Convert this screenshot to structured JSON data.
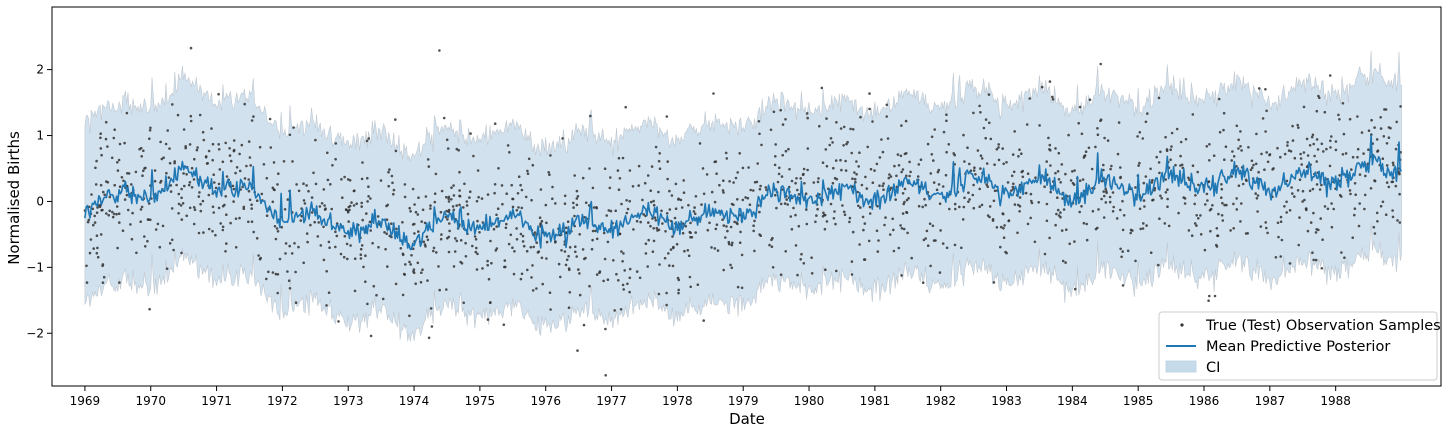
{
  "chart_data": {
    "type": "line",
    "title": "",
    "xlabel": "Date",
    "ylabel": "Normalised Births",
    "xlim": [
      1968.5,
      1989.6
    ],
    "ylim": [
      -2.8,
      2.95
    ],
    "x_ticks": [
      "1969",
      "1970",
      "1971",
      "1972",
      "1973",
      "1974",
      "1975",
      "1976",
      "1977",
      "1978",
      "1979",
      "1980",
      "1981",
      "1982",
      "1983",
      "1984",
      "1985",
      "1986",
      "1987",
      "1988"
    ],
    "y_ticks": [
      -2,
      -1,
      0,
      1,
      2
    ],
    "grid": false,
    "legend_position": "bottom-right",
    "x_range": [
      1969.0,
      1989.0
    ],
    "ci_halfwidth": 1.35,
    "mean_trend": [
      {
        "year": 1969.0,
        "mean": -0.05
      },
      {
        "year": 1969.5,
        "mean": 0.05
      },
      {
        "year": 1970.0,
        "mean": 0.15
      },
      {
        "year": 1970.5,
        "mean": 0.35
      },
      {
        "year": 1971.0,
        "mean": 0.3
      },
      {
        "year": 1971.5,
        "mean": 0.1
      },
      {
        "year": 1972.0,
        "mean": -0.15
      },
      {
        "year": 1972.5,
        "mean": -0.3
      },
      {
        "year": 1973.0,
        "mean": -0.35
      },
      {
        "year": 1973.5,
        "mean": -0.45
      },
      {
        "year": 1974.0,
        "mean": -0.5
      },
      {
        "year": 1974.5,
        "mean": -0.35
      },
      {
        "year": 1975.0,
        "mean": -0.3
      },
      {
        "year": 1975.5,
        "mean": -0.35
      },
      {
        "year": 1976.0,
        "mean": -0.4
      },
      {
        "year": 1976.5,
        "mean": -0.45
      },
      {
        "year": 1977.0,
        "mean": -0.3
      },
      {
        "year": 1977.5,
        "mean": -0.25
      },
      {
        "year": 1978.0,
        "mean": -0.25
      },
      {
        "year": 1978.5,
        "mean": -0.3
      },
      {
        "year": 1979.0,
        "mean": -0.1
      },
      {
        "year": 1979.5,
        "mean": 0.05
      },
      {
        "year": 1980.0,
        "mean": 0.1
      },
      {
        "year": 1980.5,
        "mean": 0.1
      },
      {
        "year": 1981.0,
        "mean": 0.1
      },
      {
        "year": 1981.5,
        "mean": 0.15
      },
      {
        "year": 1982.0,
        "mean": 0.2
      },
      {
        "year": 1982.5,
        "mean": 0.3
      },
      {
        "year": 1983.0,
        "mean": 0.25
      },
      {
        "year": 1983.5,
        "mean": 0.2
      },
      {
        "year": 1984.0,
        "mean": 0.15
      },
      {
        "year": 1984.5,
        "mean": 0.2
      },
      {
        "year": 1985.0,
        "mean": 0.2
      },
      {
        "year": 1985.5,
        "mean": 0.3
      },
      {
        "year": 1986.0,
        "mean": 0.3
      },
      {
        "year": 1986.5,
        "mean": 0.35
      },
      {
        "year": 1987.0,
        "mean": 0.3
      },
      {
        "year": 1987.5,
        "mean": 0.35
      },
      {
        "year": 1988.0,
        "mean": 0.4
      },
      {
        "year": 1988.5,
        "mean": 0.5
      },
      {
        "year": 1989.0,
        "mean": 0.5
      }
    ],
    "series": [
      {
        "name": "True (Test) Observation Samples",
        "kind": "scatter",
        "color": "#333333"
      },
      {
        "name": "Mean Predictive Posterior",
        "kind": "line",
        "color": "#1f77b4"
      },
      {
        "name": "CI",
        "kind": "area",
        "color": "#c6dbea"
      }
    ]
  }
}
